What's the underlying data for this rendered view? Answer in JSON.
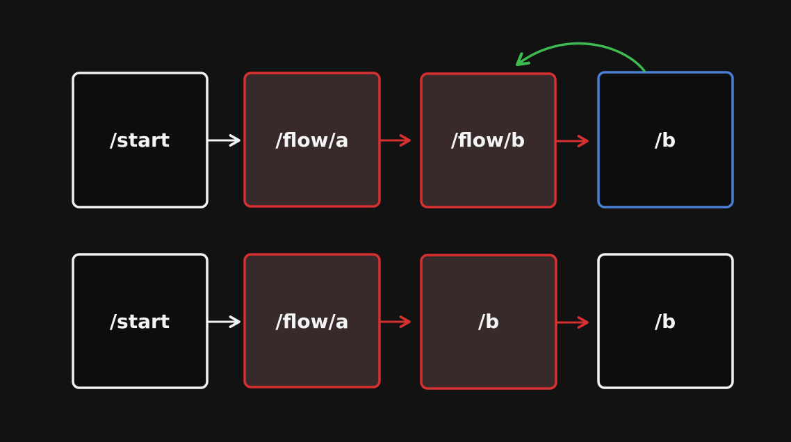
{
  "colors": {
    "background": "#121212",
    "white_border": "#f2f2f2",
    "red_border": "#d63031",
    "red_fill": "#382a2a",
    "blue_border": "#4a7fd4",
    "dark_fill": "#0d0d0d",
    "white_arrow": "#f2f2f2",
    "red_arrow": "#d63031",
    "green_arrow": "#3dba50"
  },
  "row1": {
    "box1": "/start",
    "box2": "/flow/a",
    "box3": "/flow/b",
    "box4": "/b"
  },
  "row2": {
    "box1": "/start",
    "box2": "/flow/a",
    "box3": "/b",
    "box4": "/b"
  }
}
